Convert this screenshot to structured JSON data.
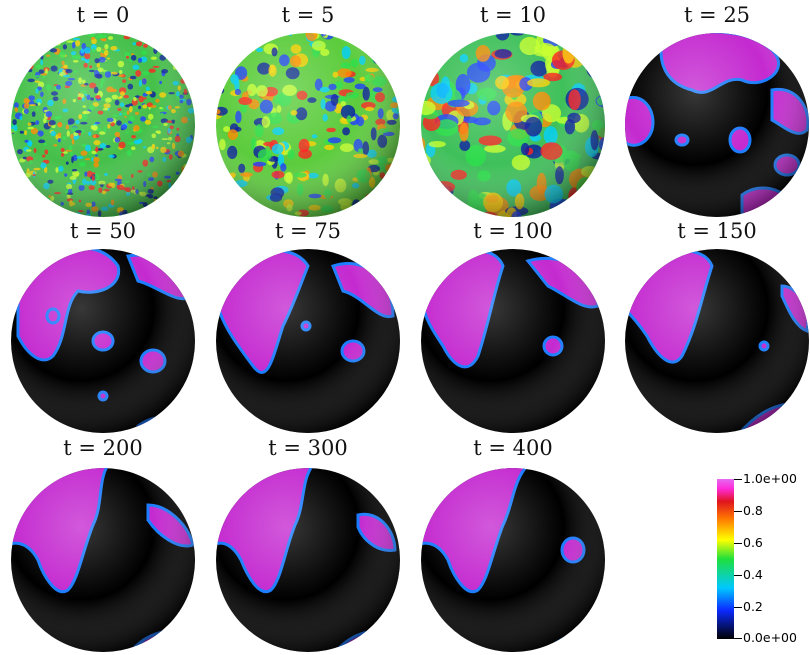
{
  "panels": [
    {
      "label": "t = 0"
    },
    {
      "label": "t = 5"
    },
    {
      "label": "t = 10"
    },
    {
      "label": "t = 25"
    },
    {
      "label": "t = 50"
    },
    {
      "label": "t = 75"
    },
    {
      "label": "t = 100"
    },
    {
      "label": "t = 150"
    },
    {
      "label": "t = 200"
    },
    {
      "label": "t = 300"
    },
    {
      "label": "t = 400"
    }
  ],
  "colorbar": {
    "ticks": [
      "1.0e+00",
      "0.8",
      "0.6",
      "0.4",
      "0.2",
      "0.0e+00"
    ],
    "colors": {
      "low": "#000000",
      "mid_low": "#0b2aff",
      "mid": "#1fe03c",
      "mid_high": "#ffff00",
      "high": "#ff2ad8"
    }
  }
}
